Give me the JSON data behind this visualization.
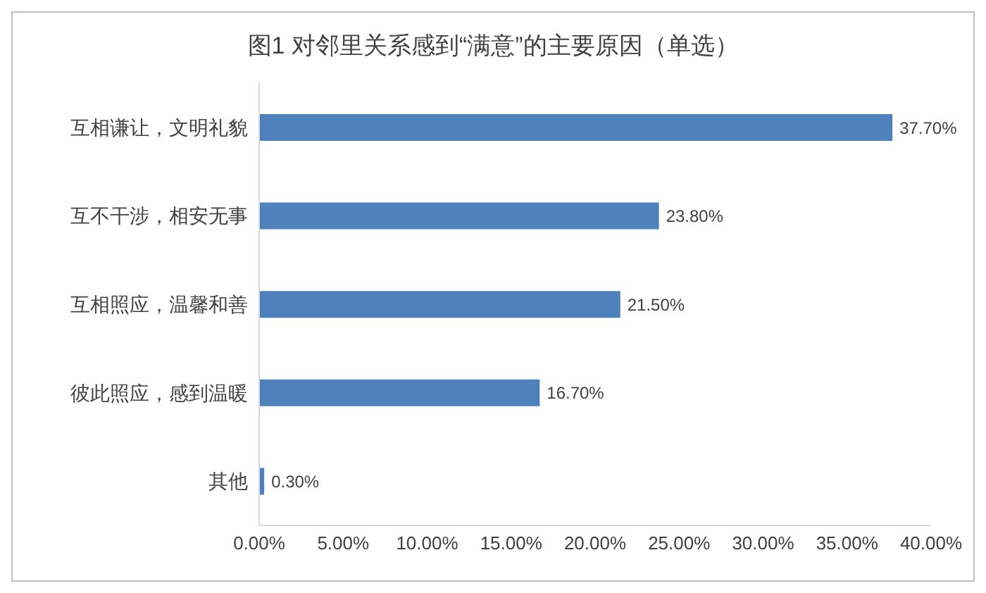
{
  "chart_data": {
    "type": "bar",
    "orientation": "horizontal",
    "title": "图1 对邻里关系感到“满意”的主要原因（单选）",
    "categories": [
      "互相谦让，文明礼貌",
      "互不干涉，相安无事",
      "互相照应，温馨和善",
      "彼此照应，感到温暖",
      "其他"
    ],
    "values": [
      37.7,
      23.8,
      21.5,
      16.7,
      0.3
    ],
    "value_labels": [
      "37.70%",
      "23.80%",
      "21.50%",
      "16.70%",
      "0.30%"
    ],
    "color": "#4f81bd",
    "xlim": [
      0,
      40
    ],
    "xticks": [
      {
        "value": 0,
        "label": "0.00%"
      },
      {
        "value": 5,
        "label": "5.00%"
      },
      {
        "value": 10,
        "label": "10.00%"
      },
      {
        "value": 15,
        "label": "15.00%"
      },
      {
        "value": 20,
        "label": "20.00%"
      },
      {
        "value": 25,
        "label": "25.00%"
      },
      {
        "value": 30,
        "label": "30.00%"
      },
      {
        "value": 35,
        "label": "35.00%"
      },
      {
        "value": 40,
        "label": "40.00%"
      }
    ],
    "grid": false,
    "legend": false
  }
}
